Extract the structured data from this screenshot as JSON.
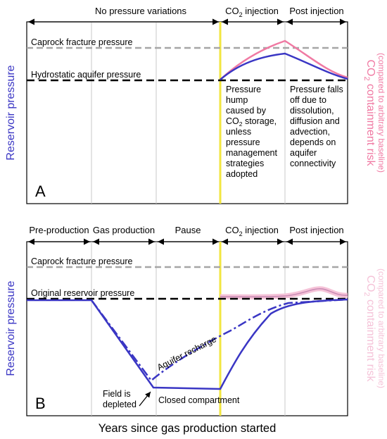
{
  "panel_a": {
    "letter": "A",
    "phases": [
      "No pressure variations",
      "CO",
      "2",
      " injection",
      "Post injection"
    ],
    "left_axis_label": "Reservoir pressure",
    "right_axis_label": [
      "CO",
      "2",
      " containment risk",
      "(compared to arbitrary baseline)"
    ],
    "caprock_label": "Caprock fracture pressure",
    "baseline_label": "Hydrostatic aquifer pressure",
    "note_injection": [
      "Pressure",
      "hump",
      "caused by",
      "CO",
      "2",
      " storage,",
      "unless",
      "pressure",
      "management",
      "strategies",
      "adopted"
    ],
    "note_post": [
      "Pressure falls",
      "off due to",
      "dissolution,",
      "diffusion and",
      "advection,",
      "depends on",
      "aquifer",
      "connectivity"
    ]
  },
  "panel_b": {
    "letter": "B",
    "phases": [
      "Pre-production",
      "Gas production",
      "Pause",
      "CO",
      "2",
      " injection",
      "Post injection"
    ],
    "left_axis_label": "Reservoir pressure",
    "right_axis_label": [
      "CO",
      "2",
      " containment risk",
      "(compared to arbitrary baseline)"
    ],
    "caprock_label": "Caprock fracture pressure",
    "baseline_label": "Original reservoir pressure",
    "aquifer_label": "Aquifer recharge",
    "depleted_label": [
      "Field is",
      "depleted"
    ],
    "closed_label": "Closed compartment"
  },
  "x_axis_label": "Years since gas production started",
  "colors": {
    "pressure": "#3a36c4",
    "risk": "#f07aa3",
    "risk_faded": "#f5c3d8",
    "injection_line": "#f2e640",
    "caprock": "#a6a6a6",
    "baseline": "#000000",
    "grid": "#c8c8c8"
  }
}
